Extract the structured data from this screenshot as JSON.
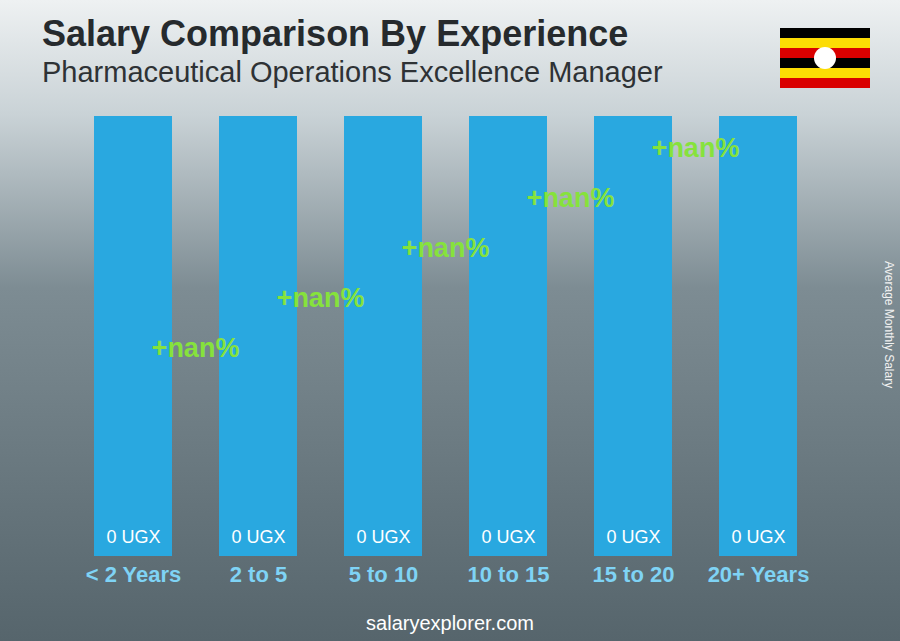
{
  "chart_data": {
    "type": "bar",
    "title": "Salary Comparison By Experience",
    "subtitle": "Pharmaceutical Operations Excellence Manager",
    "ylabel": "Average Monthly Salary",
    "source": "salaryexplorer.com",
    "categories": [
      "< 2 Years",
      "2 to 5",
      "5 to 10",
      "10 to 15",
      "15 to 20",
      "20+ Years"
    ],
    "values": [
      0,
      0,
      0,
      0,
      0,
      0
    ],
    "value_labels": [
      "0 UGX",
      "0 UGX",
      "0 UGX",
      "0 UGX",
      "0 UGX",
      "0 UGX"
    ],
    "data_labels": true,
    "tick_labels": "x",
    "color": "#29a8e0",
    "annotations": [
      "+nan%",
      "+nan%",
      "+nan%",
      "+nan%",
      "+nan%"
    ]
  }
}
